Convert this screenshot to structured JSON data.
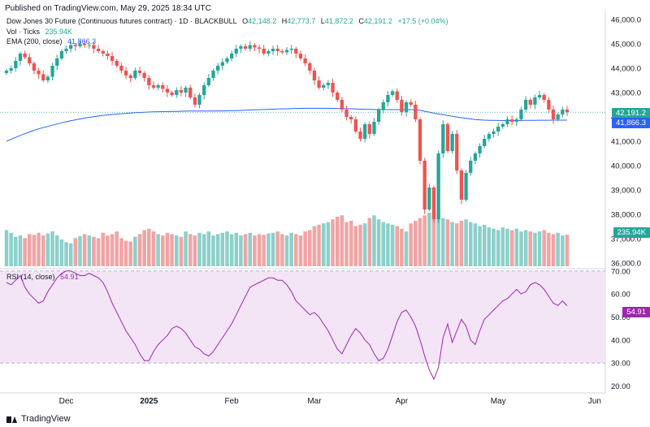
{
  "header": {
    "published": "Published on TradingView.com, May 29, 2025 18:34 UTC"
  },
  "legend": {
    "symbol": "Dow Jones 30 Future (Continuous futures contract) · 1D · BLACKBULL",
    "open_label": "O",
    "open": "42,148.2",
    "high_label": "H",
    "high": "42,773.7",
    "low_label": "L",
    "low": "41,872.2",
    "close_label": "C",
    "close": "42,191.2",
    "change": "+17.5 (+0.04%)",
    "vol_label": "Vol · Ticks",
    "vol_value": "235.94K",
    "ema_label": "EMA (200, close)",
    "ema_value": "41,866.3",
    "rsi_label": "RSI (14, close)",
    "rsi_value": "54.91"
  },
  "price_tags": {
    "last_price": "42,191.2",
    "ema": "41,866.3",
    "volume": "235.94K",
    "rsi": "54.91"
  },
  "footer": {
    "brand": "TradingView"
  },
  "colors": {
    "up": "#26a69a",
    "down": "#ef5350",
    "ema": "#2962ff",
    "rsi": "#9c27b0",
    "rsi_band": "#f3e5f5"
  },
  "chart_data": [
    {
      "type": "candlestick",
      "title": "Dow Jones 30 Future (Continuous futures contract)",
      "ylim": [
        35800,
        46200
      ],
      "y_ticks": [
        "46,000.0",
        "45,000.0",
        "44,000.0",
        "43,000.0",
        "42,000.0",
        "41,000.0",
        "40,000.0",
        "39,000.0",
        "38,000.0",
        "37,000.0",
        "36,000.0"
      ],
      "y_tick_values": [
        46000,
        45000,
        44000,
        43000,
        42000,
        41000,
        40000,
        39000,
        38000,
        37000,
        36000
      ],
      "x_ticks": [
        "Dec",
        "2025",
        "Feb",
        "Mar",
        "Apr",
        "May",
        "Jun"
      ],
      "x_tick_index": [
        13,
        31,
        49,
        67,
        86,
        107,
        128
      ],
      "closes": [
        43900,
        44000,
        44300,
        44600,
        44450,
        44200,
        43900,
        43750,
        43500,
        43650,
        44100,
        44400,
        44700,
        44800,
        44950,
        44900,
        45000,
        44950,
        44950,
        44800,
        44700,
        44600,
        44500,
        44300,
        44100,
        43900,
        43700,
        43600,
        43900,
        43800,
        43600,
        43300,
        43200,
        43300,
        43150,
        43000,
        42900,
        43100,
        43000,
        43200,
        42800,
        42500,
        42900,
        43300,
        43600,
        43900,
        44100,
        44250,
        44400,
        44600,
        44800,
        44900,
        44800,
        44950,
        44850,
        44800,
        44600,
        44700,
        44800,
        44700,
        44650,
        44750,
        44800,
        44600,
        44400,
        44200,
        43900,
        43500,
        43200,
        43300,
        43400,
        43000,
        42700,
        42300,
        42000,
        41900,
        41400,
        41100,
        41700,
        41300,
        41800,
        42300,
        42600,
        42900,
        43050,
        42700,
        42200,
        42600,
        42500,
        41900,
        40200,
        38200,
        39100,
        37800,
        40500,
        41700,
        40600,
        41300,
        39800,
        38600,
        39700,
        40200,
        40500,
        40800,
        41100,
        41300,
        41400,
        41600,
        41700,
        41900,
        41800,
        41900,
        42300,
        42700,
        42500,
        42800,
        42900,
        42700,
        42300,
        41900,
        42100,
        42300,
        42191.2
      ],
      "ema": [
        41000,
        41080,
        41160,
        41240,
        41310,
        41380,
        41450,
        41510,
        41560,
        41610,
        41660,
        41710,
        41755,
        41800,
        41840,
        41880,
        41915,
        41950,
        41980,
        42010,
        42035,
        42060,
        42080,
        42100,
        42115,
        42130,
        42145,
        42160,
        42172,
        42183,
        42193,
        42200,
        42207,
        42212,
        42217,
        42221,
        42224,
        42228,
        42232,
        42236,
        42239,
        42240,
        42241,
        42242,
        42243,
        42244,
        42245,
        42247,
        42250,
        42255,
        42261,
        42268,
        42275,
        42283,
        42290,
        42297,
        42303,
        42310,
        42317,
        42323,
        42329,
        42335,
        42341,
        42346,
        42350,
        42353,
        42354,
        42355,
        42354,
        42353,
        42352,
        42350,
        42347,
        42343,
        42338,
        42332,
        42325,
        42318,
        42313,
        42307,
        42302,
        42300,
        42299,
        42299,
        42300,
        42300,
        42299,
        42300,
        42300,
        42295,
        42270,
        42230,
        42195,
        42150,
        42120,
        42090,
        42060,
        42030,
        41995,
        41965,
        41940,
        41915,
        41895,
        41880,
        41868,
        41860,
        41855,
        41852,
        41850,
        41850,
        41850,
        41851,
        41853,
        41856,
        41858,
        41860,
        41862,
        41863,
        41864,
        41865,
        41865,
        41866,
        41866.3
      ]
    },
    {
      "type": "bar",
      "title": "Vol · Ticks",
      "last_value": "235.94K",
      "values": [
        270,
        250,
        220,
        230,
        210,
        240,
        235,
        250,
        230,
        245,
        260,
        230,
        200,
        180,
        170,
        210,
        225,
        240,
        230,
        220,
        210,
        250,
        230,
        240,
        260,
        210,
        190,
        185,
        220,
        240,
        270,
        280,
        260,
        240,
        230,
        250,
        240,
        230,
        220,
        260,
        240,
        230,
        250,
        240,
        260,
        230,
        240,
        250,
        260,
        240,
        250,
        230,
        240,
        250,
        230,
        240,
        235,
        245,
        250,
        260,
        240,
        230,
        250,
        240,
        230,
        260,
        270,
        300,
        310,
        320,
        330,
        350,
        370,
        380,
        330,
        340,
        300,
        310,
        320,
        360,
        380,
        350,
        330,
        320,
        310,
        300,
        280,
        260,
        320,
        340,
        360,
        380,
        400,
        410,
        400,
        360,
        350,
        330,
        320,
        340,
        350,
        330,
        320,
        300,
        310,
        290,
        280,
        270,
        290,
        280,
        270,
        280,
        260,
        270,
        260,
        250,
        260,
        270,
        250,
        240,
        250,
        230,
        236
      ]
    },
    {
      "type": "line",
      "title": "RSI (14, close)",
      "last_value": "54.91",
      "ylim": [
        17,
        71
      ],
      "y_ticks": [
        "70.00",
        "60.00",
        "50.00",
        "40.00",
        "30.00",
        "20.00"
      ],
      "y_tick_values": [
        70,
        60,
        50,
        40,
        30,
        20
      ],
      "band": [
        30,
        70
      ],
      "values": [
        65,
        64,
        66,
        68,
        63,
        60,
        58,
        56,
        57,
        61,
        64,
        67,
        69,
        70,
        70,
        69,
        68,
        68,
        69,
        68,
        67,
        65,
        61,
        56,
        52,
        48,
        44,
        41,
        38,
        34,
        31,
        31,
        35,
        38,
        40,
        42,
        45,
        46,
        45,
        43,
        40,
        37,
        36,
        34,
        33,
        35,
        38,
        41,
        44,
        47,
        51,
        55,
        59,
        63,
        64,
        65,
        66,
        67,
        67,
        66,
        66,
        64,
        61,
        57,
        55,
        53,
        51,
        52,
        50,
        47,
        44,
        40,
        36,
        34,
        38,
        42,
        45,
        43,
        40,
        38,
        34,
        31,
        32,
        36,
        42,
        48,
        52,
        53,
        50,
        46,
        40,
        33,
        27,
        23,
        28,
        41,
        47,
        39,
        44,
        49,
        46,
        40,
        38,
        44,
        49,
        51,
        53,
        55,
        57,
        58,
        60,
        62,
        60,
        61,
        64,
        65,
        64,
        62,
        59,
        56,
        55,
        57,
        54.91
      ]
    }
  ]
}
